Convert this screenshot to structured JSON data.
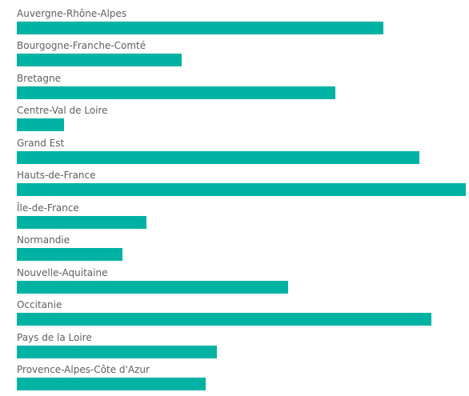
{
  "chart_data": {
    "type": "bar",
    "orientation": "horizontal",
    "title": "",
    "xlabel": "",
    "ylabel": "",
    "categories": [
      "Auvergne-Rhône-Alpes",
      "Bourgogne-Franche-Comté",
      "Bretagne",
      "Centre-Val de Loire",
      "Grand Est",
      "Hauts-de-France",
      "Île-de-France",
      "Normandie",
      "Nouvelle-Aquitaine",
      "Occitanie",
      "Pays de la Loire",
      "Provence-Alpes-Côte d'Azur"
    ],
    "values": [
      81.6,
      36.8,
      71.0,
      10.5,
      89.6,
      100,
      28.8,
      23.5,
      60.5,
      92.3,
      44.6,
      42.0
    ],
    "xlim": [
      0,
      100
    ],
    "grid": false,
    "legend": "none",
    "bar_color": "#00b2a2",
    "label_color": "#5f5f5f"
  }
}
